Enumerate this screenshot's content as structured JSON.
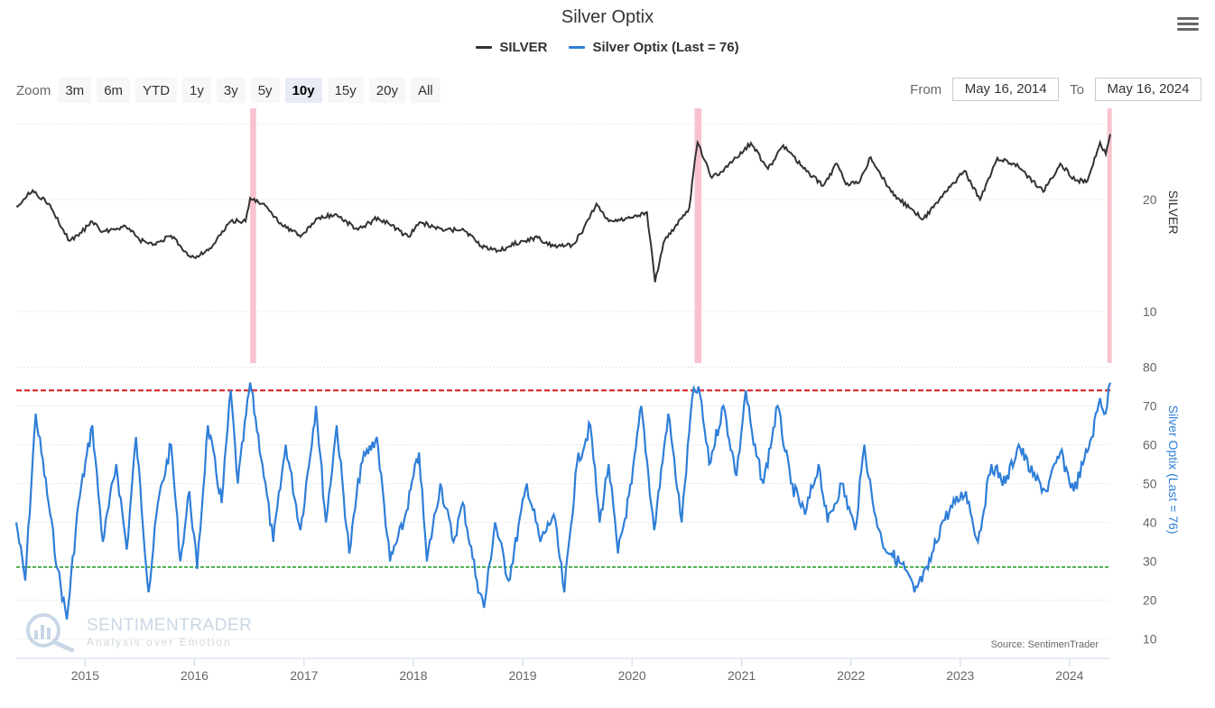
{
  "title": "Silver Optix",
  "legend": [
    {
      "label": "SILVER",
      "color": "#333333"
    },
    {
      "label": "Silver Optix (Last = 76)",
      "color": "#2f7ed8"
    }
  ],
  "zoom": {
    "label": "Zoom",
    "buttons": [
      "3m",
      "6m",
      "YTD",
      "1y",
      "3y",
      "5y",
      "10y",
      "15y",
      "20y",
      "All"
    ],
    "active": "10y"
  },
  "range": {
    "from_label": "From",
    "from_value": "May 16, 2014",
    "to_label": "To",
    "to_value": "May 16, 2024"
  },
  "watermark": {
    "main": "SENTIMENTRADER",
    "sub": "Analysis over Emotion"
  },
  "source": "Source: SentimenTrader",
  "chart_data": [
    {
      "type": "line",
      "series": [
        {
          "name": "SILVER",
          "color": "#333333"
        }
      ],
      "y_axis_title": "SILVER",
      "y_scale": "log",
      "y_ticks": [
        10,
        20
      ],
      "x_range": [
        "2014-05-16",
        "2024-05-16"
      ],
      "x_ticks": [
        "2015",
        "2016",
        "2017",
        "2018",
        "2019",
        "2020",
        "2021",
        "2022",
        "2023",
        "2024"
      ],
      "points": [
        [
          "2014-05-16",
          19.2
        ],
        [
          "2014-07-10",
          21.2
        ],
        [
          "2014-09-01",
          19.5
        ],
        [
          "2014-10-15",
          16.8
        ],
        [
          "2014-11-10",
          15.5
        ],
        [
          "2014-12-20",
          16.3
        ],
        [
          "2015-01-20",
          17.5
        ],
        [
          "2015-03-01",
          16.4
        ],
        [
          "2015-05-15",
          17.0
        ],
        [
          "2015-07-01",
          15.6
        ],
        [
          "2015-08-15",
          15.1
        ],
        [
          "2015-10-15",
          16.0
        ],
        [
          "2015-12-20",
          14.0
        ],
        [
          "2016-01-20",
          14.2
        ],
        [
          "2016-03-01",
          15.0
        ],
        [
          "2016-05-01",
          17.5
        ],
        [
          "2016-06-20",
          17.5
        ],
        [
          "2016-07-05",
          20.2
        ],
        [
          "2016-08-15",
          19.5
        ],
        [
          "2016-10-15",
          17.3
        ],
        [
          "2016-12-20",
          15.9
        ],
        [
          "2017-02-15",
          17.8
        ],
        [
          "2017-04-15",
          18.3
        ],
        [
          "2017-06-30",
          16.6
        ],
        [
          "2017-09-05",
          17.9
        ],
        [
          "2017-12-15",
          15.9
        ],
        [
          "2018-01-25",
          17.4
        ],
        [
          "2018-04-15",
          16.5
        ],
        [
          "2018-06-15",
          16.7
        ],
        [
          "2018-08-15",
          15.0
        ],
        [
          "2018-10-15",
          14.6
        ],
        [
          "2018-12-31",
          15.5
        ],
        [
          "2019-02-20",
          15.8
        ],
        [
          "2019-04-15",
          15.0
        ],
        [
          "2019-06-15",
          15.1
        ],
        [
          "2019-07-15",
          16.2
        ],
        [
          "2019-09-04",
          19.5
        ],
        [
          "2019-10-15",
          17.5
        ],
        [
          "2019-12-31",
          17.9
        ],
        [
          "2020-02-20",
          18.5
        ],
        [
          "2020-03-18",
          12.0
        ],
        [
          "2020-04-15",
          15.3
        ],
        [
          "2020-06-15",
          17.8
        ],
        [
          "2020-07-10",
          19.0
        ],
        [
          "2020-07-25",
          24.0
        ],
        [
          "2020-08-07",
          28.5
        ],
        [
          "2020-09-24",
          22.9
        ],
        [
          "2020-11-15",
          24.5
        ],
        [
          "2021-02-01",
          28.4
        ],
        [
          "2021-03-30",
          24.2
        ],
        [
          "2021-05-20",
          28.0
        ],
        [
          "2021-08-15",
          23.5
        ],
        [
          "2021-09-30",
          21.8
        ],
        [
          "2021-11-15",
          25.0
        ],
        [
          "2021-12-15",
          22.0
        ],
        [
          "2022-02-01",
          22.5
        ],
        [
          "2022-03-08",
          26.0
        ],
        [
          "2022-05-15",
          21.0
        ],
        [
          "2022-07-15",
          19.0
        ],
        [
          "2022-09-01",
          17.8
        ],
        [
          "2022-11-15",
          21.0
        ],
        [
          "2023-01-15",
          23.9
        ],
        [
          "2023-03-08",
          20.0
        ],
        [
          "2023-05-05",
          25.9
        ],
        [
          "2023-07-15",
          24.5
        ],
        [
          "2023-10-05",
          21.0
        ],
        [
          "2023-12-01",
          25.0
        ],
        [
          "2024-01-20",
          22.5
        ],
        [
          "2024-03-01",
          22.5
        ],
        [
          "2024-04-12",
          28.5
        ],
        [
          "2024-05-01",
          26.5
        ],
        [
          "2024-05-16",
          30.0
        ]
      ]
    },
    {
      "type": "line",
      "series": [
        {
          "name": "Silver Optix (Last = 76)",
          "color": "#2f7ed8"
        }
      ],
      "y_axis_title": "Silver Optix (Last = 76)",
      "y_ticks": [
        10,
        20,
        30,
        40,
        50,
        60,
        70,
        80
      ],
      "y_range": [
        5,
        85
      ],
      "x_range": [
        "2014-05-16",
        "2024-05-16"
      ],
      "reference_lines": [
        {
          "value": 74,
          "color": "#d62728"
        },
        {
          "value": 28.5,
          "color": "#2ca02c"
        }
      ],
      "highlight_periods": [
        [
          "2016-07-05",
          "2016-07-25"
        ],
        [
          "2020-07-28",
          "2020-08-20"
        ],
        [
          "2024-05-06",
          "2024-05-16"
        ]
      ],
      "points": [
        [
          "2014-05-16",
          40
        ],
        [
          "2014-06-15",
          25
        ],
        [
          "2014-07-20",
          68
        ],
        [
          "2014-09-01",
          45
        ],
        [
          "2014-10-01",
          28
        ],
        [
          "2014-11-01",
          15
        ],
        [
          "2014-12-10",
          45
        ],
        [
          "2015-01-25",
          65
        ],
        [
          "2015-03-01",
          35
        ],
        [
          "2015-04-15",
          55
        ],
        [
          "2015-05-20",
          33
        ],
        [
          "2015-06-20",
          62
        ],
        [
          "2015-08-01",
          22
        ],
        [
          "2015-09-01",
          45
        ],
        [
          "2015-10-15",
          60
        ],
        [
          "2015-11-15",
          30
        ],
        [
          "2015-12-15",
          48
        ],
        [
          "2016-01-10",
          28
        ],
        [
          "2016-02-15",
          65
        ],
        [
          "2016-04-01",
          45
        ],
        [
          "2016-05-01",
          74
        ],
        [
          "2016-05-25",
          50
        ],
        [
          "2016-07-05",
          76
        ],
        [
          "2016-08-15",
          55
        ],
        [
          "2016-09-20",
          35
        ],
        [
          "2016-11-01",
          60
        ],
        [
          "2016-12-20",
          38
        ],
        [
          "2017-02-10",
          70
        ],
        [
          "2017-03-15",
          40
        ],
        [
          "2017-04-20",
          65
        ],
        [
          "2017-06-01",
          32
        ],
        [
          "2017-07-10",
          55
        ],
        [
          "2017-09-01",
          62
        ],
        [
          "2017-10-15",
          30
        ],
        [
          "2017-11-30",
          40
        ],
        [
          "2018-01-20",
          58
        ],
        [
          "2018-02-15",
          30
        ],
        [
          "2018-04-01",
          50
        ],
        [
          "2018-05-15",
          35
        ],
        [
          "2018-06-15",
          45
        ],
        [
          "2018-08-01",
          25
        ],
        [
          "2018-08-25",
          18
        ],
        [
          "2018-10-01",
          40
        ],
        [
          "2018-11-15",
          25
        ],
        [
          "2019-01-15",
          50
        ],
        [
          "2019-03-01",
          35
        ],
        [
          "2019-04-15",
          42
        ],
        [
          "2019-05-20",
          22
        ],
        [
          "2019-07-01",
          55
        ],
        [
          "2019-08-15",
          65
        ],
        [
          "2019-09-15",
          40
        ],
        [
          "2019-10-15",
          55
        ],
        [
          "2019-11-15",
          32
        ],
        [
          "2019-12-31",
          50
        ],
        [
          "2020-02-01",
          70
        ],
        [
          "2020-03-15",
          38
        ],
        [
          "2020-05-01",
          68
        ],
        [
          "2020-06-15",
          40
        ],
        [
          "2020-07-20",
          72
        ],
        [
          "2020-08-10",
          75
        ],
        [
          "2020-09-15",
          55
        ],
        [
          "2020-11-01",
          70
        ],
        [
          "2020-12-15",
          52
        ],
        [
          "2021-01-15",
          74
        ],
        [
          "2021-02-10",
          60
        ],
        [
          "2021-03-15",
          50
        ],
        [
          "2021-05-01",
          70
        ],
        [
          "2021-06-15",
          50
        ],
        [
          "2021-08-01",
          42
        ],
        [
          "2021-09-15",
          55
        ],
        [
          "2021-10-15",
          40
        ],
        [
          "2021-12-01",
          50
        ],
        [
          "2022-01-15",
          38
        ],
        [
          "2022-02-15",
          60
        ],
        [
          "2022-03-15",
          45
        ],
        [
          "2022-04-15",
          35
        ],
        [
          "2022-05-15",
          32
        ],
        [
          "2022-06-30",
          28
        ],
        [
          "2022-08-01",
          22
        ],
        [
          "2022-09-15",
          28
        ],
        [
          "2022-11-01",
          40
        ],
        [
          "2022-12-15",
          45
        ],
        [
          "2023-01-20",
          48
        ],
        [
          "2023-03-01",
          35
        ],
        [
          "2023-04-15",
          55
        ],
        [
          "2023-06-01",
          50
        ],
        [
          "2023-07-15",
          60
        ],
        [
          "2023-09-01",
          52
        ],
        [
          "2023-10-15",
          48
        ],
        [
          "2023-12-01",
          58
        ],
        [
          "2024-01-15",
          48
        ],
        [
          "2024-02-15",
          55
        ],
        [
          "2024-03-15",
          62
        ],
        [
          "2024-04-12",
          72
        ],
        [
          "2024-04-30",
          68
        ],
        [
          "2024-05-16",
          76
        ]
      ]
    }
  ]
}
